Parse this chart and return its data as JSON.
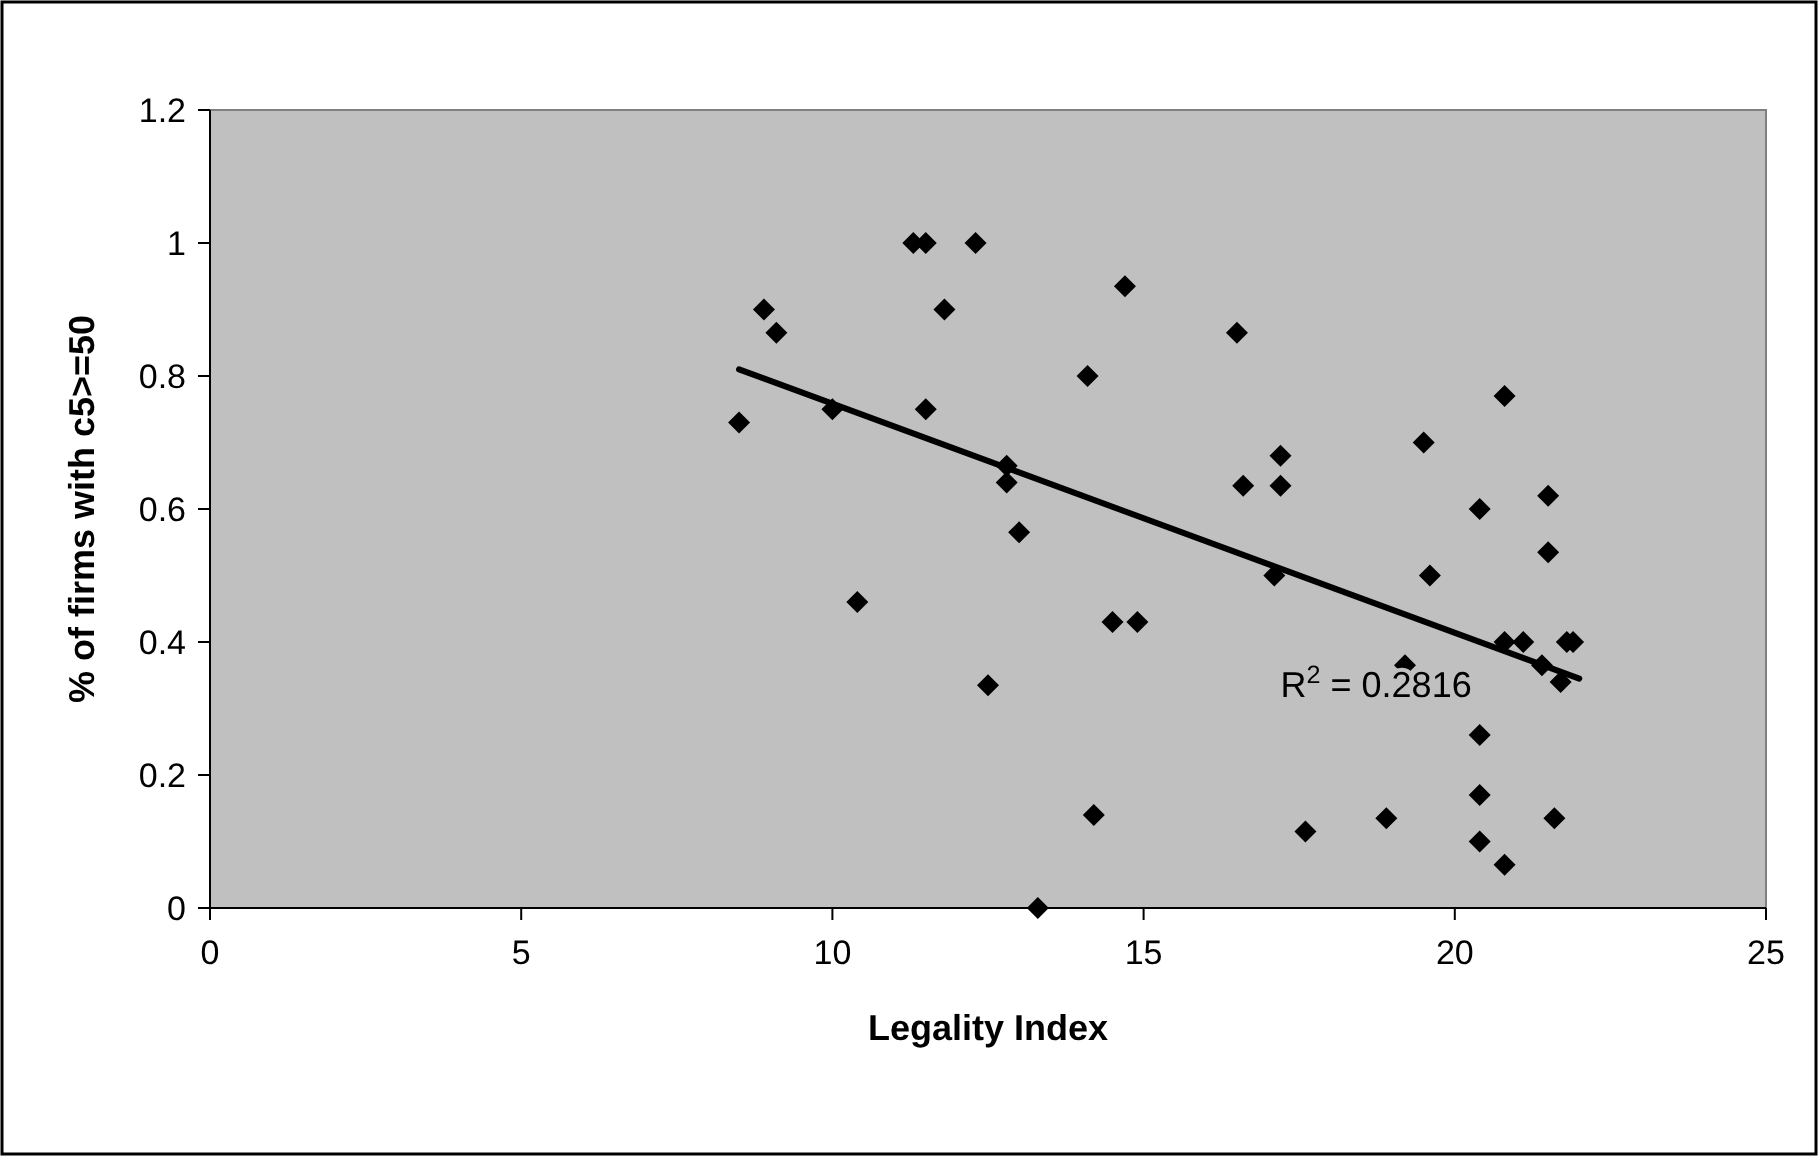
{
  "chart_data": {
    "type": "scatter",
    "xlabel": "Legality Index",
    "ylabel": "% of firms with c5>=50",
    "xlim": [
      0,
      25
    ],
    "ylim": [
      0,
      1.2
    ],
    "xticks": [
      0,
      5,
      10,
      15,
      20,
      25
    ],
    "yticks": [
      0,
      0.2,
      0.4,
      0.6,
      0.8,
      1,
      1.2
    ],
    "grid": false,
    "marker": "diamond",
    "annotations": [
      "R$^{2}$ = 0.2816"
    ],
    "series": [
      {
        "color": "#000000",
        "x": [
          8.5,
          8.9,
          9.1,
          10.0,
          10.4,
          11.3,
          11.5,
          12.3,
          11.5,
          11.8,
          12.5,
          12.8,
          12.8,
          13.0,
          13.3,
          14.1,
          14.2,
          14.5,
          14.9,
          14.7,
          16.5,
          16.6,
          17.1,
          17.2,
          17.2,
          17.6,
          18.9,
          19.2,
          19.5,
          19.6,
          20.4,
          20.4,
          20.4,
          20.4,
          20.8,
          20.8,
          20.8,
          21.1,
          21.4,
          21.5,
          21.5,
          21.6,
          21.7,
          21.8,
          21.9
        ],
        "values": [
          0.73,
          0.9,
          0.865,
          0.75,
          0.46,
          1.0,
          1.0,
          1.0,
          0.75,
          0.9,
          0.335,
          0.665,
          0.64,
          0.565,
          0.0,
          0.8,
          0.14,
          0.43,
          0.43,
          0.935,
          0.865,
          0.635,
          0.5,
          0.68,
          0.635,
          0.115,
          0.135,
          0.365,
          0.7,
          0.5,
          0.6,
          0.26,
          0.17,
          0.1,
          0.77,
          0.4,
          0.065,
          0.4,
          0.365,
          0.62,
          0.535,
          0.135,
          0.34,
          0.4,
          0.4
        ]
      },
      {
        "type": "line",
        "color": "#000000",
        "marker": "none",
        "x": [
          8.5,
          22
        ],
        "values": [
          0.81,
          0.345
        ]
      }
    ]
  }
}
